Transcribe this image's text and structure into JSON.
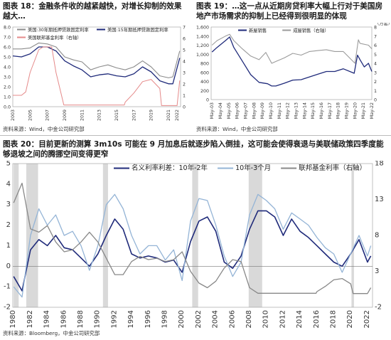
{
  "figure18": {
    "title": "图表 18：金融条件收的越紧越快，对增长抑制的效果越大…",
    "source": "资料来源：Wind，中金公司研究部",
    "chart_data": {
      "type": "line",
      "x_ticks": [
        "2003",
        "2005",
        "2007",
        "2009",
        "2011",
        "2013",
        "2015",
        "2017",
        "2019",
        "2021",
        "2022"
      ],
      "y_left_ticks": [
        "0.0",
        "1.0",
        "2.0",
        "3.0",
        "4.0",
        "5.0",
        "6.0",
        "7.0",
        "8.0"
      ],
      "y_right_ticks": [
        "0",
        "1",
        "2",
        "3",
        "4",
        "5",
        "6",
        "7"
      ],
      "ylim": [
        0,
        8
      ],
      "y2lim": [
        0,
        7
      ],
      "series": [
        {
          "name": "美国:30年期抵押贷款固定利率",
          "axis": "left",
          "color": "#8c8c8c",
          "x": [
            2003,
            2004,
            2005,
            2006,
            2007,
            2008,
            2009,
            2010,
            2011,
            2012,
            2013,
            2014,
            2015,
            2016,
            2017,
            2018,
            2019,
            2020,
            2021,
            2021.5,
            2022.3
          ],
          "values": [
            5.8,
            5.8,
            5.9,
            6.4,
            6.3,
            6.0,
            5.0,
            4.7,
            4.5,
            3.7,
            4.0,
            4.2,
            3.9,
            3.7,
            4.0,
            4.6,
            4.0,
            3.1,
            2.9,
            3.0,
            5.6
          ]
        },
        {
          "name": "美国:15年期抵押贷款固定利率",
          "axis": "left",
          "color": "#1f2a7a",
          "x": [
            2003,
            2004,
            2005,
            2006,
            2007,
            2008,
            2009,
            2010,
            2011,
            2012,
            2013,
            2014,
            2015,
            2016,
            2017,
            2018,
            2019,
            2020,
            2021,
            2021.5,
            2022.3
          ],
          "values": [
            5.1,
            5.0,
            5.3,
            6.0,
            6.0,
            5.6,
            4.6,
            4.1,
            3.7,
            3.0,
            3.2,
            3.3,
            3.1,
            3.0,
            3.3,
            4.0,
            3.5,
            2.6,
            2.3,
            2.3,
            4.9
          ]
        },
        {
          "name": "美国联邦基金利率（右轴）",
          "axis": "right",
          "color": "#e58a8a",
          "x": [
            2003,
            2004,
            2004.5,
            2005,
            2006,
            2006.5,
            2007.5,
            2008,
            2008.9,
            2009,
            2015.9,
            2016,
            2017,
            2018,
            2019,
            2019.5,
            2020,
            2020.2,
            2022,
            2022.3
          ],
          "values": [
            1.0,
            1.0,
            1.3,
            3.0,
            5.0,
            5.25,
            5.25,
            3.0,
            0.15,
            0.15,
            0.15,
            0.4,
            1.2,
            2.2,
            2.4,
            2.0,
            1.6,
            0.1,
            0.1,
            2.3
          ]
        }
      ]
    }
  },
  "figure19": {
    "title": "图表 19：…这一点从近期房贷利率大幅上行对于美国房地产市场需求的抑制上已经得到很明显的体现",
    "source": "资料来源：Wind，中金公司研究部",
    "chart_data": {
      "type": "line",
      "x_ticks": [
        "May-03",
        "May-04",
        "May-05",
        "May-06",
        "May-07",
        "May-08",
        "May-09",
        "May-10",
        "May-11",
        "May-12",
        "May-13",
        "May-14",
        "May-15",
        "May-16",
        "May-17",
        "May-18",
        "May-19",
        "May-20",
        "May-21",
        "May-22"
      ],
      "y_left_ticks": [
        "0",
        "200",
        "400",
        "600",
        "800",
        "1,000",
        "1,200",
        "1,400",
        "1,600"
      ],
      "y_right_ticks": [
        "0",
        "1",
        "2",
        "3",
        "4",
        "5",
        "6",
        "7",
        "8"
      ],
      "y_right_unit": "（万套）",
      "ylim": [
        0,
        1600
      ],
      "y2lim": [
        0,
        800
      ],
      "series": [
        {
          "name": "新屋销售",
          "axis": "left",
          "color": "#1f2a7a",
          "x": [
            2003.4,
            2004,
            2005,
            2005.5,
            2006,
            2007,
            2008,
            2009,
            2010,
            2010.5,
            2011,
            2012,
            2013,
            2014,
            2015,
            2016,
            2017,
            2018,
            2019,
            2020.3,
            2020.7,
            2021,
            2021.5,
            2022,
            2022.4
          ],
          "values": [
            1050,
            1150,
            1300,
            1380,
            1150,
            850,
            550,
            380,
            350,
            300,
            300,
            360,
            430,
            440,
            500,
            560,
            620,
            620,
            680,
            580,
            980,
            880,
            720,
            800,
            620
          ]
        },
        {
          "name": "成屋销售（右轴）",
          "axis": "right",
          "color": "#9b9b9b",
          "x": [
            2003.4,
            2004,
            2005,
            2005.5,
            2006,
            2007,
            2008,
            2009,
            2009.8,
            2010.5,
            2011,
            2012,
            2013,
            2014,
            2015,
            2016,
            2017,
            2018,
            2019,
            2020.4,
            2020.8,
            2021,
            2022,
            2022.4
          ],
          "values": [
            600,
            650,
            700,
            720,
            650,
            560,
            480,
            440,
            520,
            400,
            420,
            460,
            510,
            490,
            530,
            540,
            550,
            530,
            530,
            400,
            660,
            620,
            600,
            560
          ]
        }
      ]
    }
  },
  "figure20": {
    "title": "图表 20：目前更新的测算 3m10s 可能在 9 月加息后就逐步陷入倒挂，这可能会使得衰退与美联储政策四季度能够退坡之间的腾挪空间变得更窄",
    "source": "资料来源：Bloomberg，中金公司研究部",
    "chart_data": {
      "type": "line",
      "x_ticks": [
        "1980",
        "1982",
        "1984",
        "1986",
        "1988",
        "1990",
        "1992",
        "1994",
        "1996",
        "1998",
        "2000",
        "2002",
        "2004",
        "2006",
        "2008",
        "2010",
        "2012",
        "2014",
        "2016",
        "2018",
        "2020",
        "2022"
      ],
      "y_left_ticks": [
        "-2",
        "-1",
        "0",
        "1",
        "2",
        "3",
        "4",
        "5"
      ],
      "y_right_ticks": [
        "-2",
        "3",
        "8",
        "13",
        "18"
      ],
      "ylim": [
        -2,
        5
      ],
      "y2lim": [
        -2,
        20
      ],
      "recessions": [
        [
          1980.0,
          1980.6
        ],
        [
          1981.5,
          1982.9
        ],
        [
          1990.6,
          1991.2
        ],
        [
          2001.2,
          2001.9
        ],
        [
          2007.9,
          2009.5
        ],
        [
          2020.1,
          2020.4
        ]
      ],
      "series": [
        {
          "name": "名义利率利差：10年-2年",
          "axis": "left",
          "color": "#1f2a7a",
          "x": [
            1980,
            1981,
            1982,
            1983,
            1984,
            1985,
            1986,
            1987,
            1988,
            1989,
            1990,
            1991,
            1992,
            1993,
            1994,
            1995,
            1996,
            1997,
            1998,
            1999,
            2000,
            2001,
            2002,
            2003,
            2004,
            2005,
            2006,
            2007,
            2008,
            2009,
            2010,
            2011,
            2012,
            2013,
            2014,
            2015,
            2016,
            2017,
            2018,
            2019,
            2020,
            2021,
            2022,
            2022.4
          ],
          "values": [
            -0.5,
            -1.2,
            0.8,
            1.3,
            1.0,
            1.5,
            0.9,
            0.8,
            0.4,
            0.0,
            0.6,
            1.5,
            2.3,
            1.8,
            0.6,
            0.4,
            0.5,
            0.4,
            0.2,
            0.3,
            -0.3,
            1.2,
            2.2,
            2.4,
            1.7,
            0.2,
            -0.1,
            0.5,
            1.8,
            2.7,
            2.7,
            2.4,
            1.5,
            2.3,
            1.7,
            1.4,
            1.0,
            0.6,
            0.2,
            0.0,
            0.6,
            1.3,
            0.2,
            0.5
          ]
        },
        {
          "name": "10年-3个月",
          "axis": "left",
          "color": "#94b4d6",
          "x": [
            1980,
            1981,
            1982,
            1983,
            1984,
            1985,
            1986,
            1987,
            1988,
            1989,
            1990,
            1991,
            1992,
            1993,
            1994,
            1995,
            1996,
            1997,
            1998,
            1999,
            2000,
            2001,
            2002,
            2003,
            2004,
            2005,
            2006,
            2007,
            2008,
            2009,
            2010,
            2011,
            2012,
            2013,
            2014,
            2015,
            2016,
            2017,
            2018,
            2019,
            2020,
            2021,
            2022,
            2022.4
          ],
          "values": [
            -1.0,
            -1.5,
            1.5,
            2.8,
            2.0,
            2.5,
            1.5,
            1.7,
            1.0,
            -0.2,
            1.0,
            3.0,
            3.5,
            2.8,
            1.5,
            0.6,
            1.0,
            1.0,
            0.3,
            0.8,
            -0.7,
            2.2,
            3.3,
            3.2,
            2.0,
            0.5,
            -0.5,
            0.2,
            2.5,
            3.5,
            3.2,
            2.8,
            1.8,
            2.6,
            2.3,
            2.0,
            1.4,
            0.9,
            0.6,
            -0.3,
            0.6,
            1.5,
            0.5,
            1.0
          ]
        },
        {
          "name": "联邦基金利率（右轴）",
          "axis": "right",
          "color": "#888888",
          "x": [
            1980,
            1981,
            1982,
            1983,
            1984,
            1985,
            1986,
            1987,
            1988,
            1989,
            1990,
            1991,
            1992,
            1993,
            1994,
            1995,
            1996,
            1997,
            1998,
            1999,
            2000,
            2001,
            2002,
            2003,
            2004,
            2005,
            2006,
            2007,
            2008,
            2009,
            2015.9,
            2016,
            2017,
            2018,
            2019,
            2020,
            2020.3,
            2022,
            2022.4
          ],
          "values": [
            14.0,
            17.0,
            10.0,
            9.5,
            10.5,
            8.0,
            6.5,
            6.8,
            8.0,
            9.5,
            8.0,
            5.5,
            3.0,
            3.0,
            5.0,
            5.8,
            5.3,
            5.5,
            5.0,
            5.3,
            6.5,
            3.5,
            1.7,
            1.0,
            2.0,
            4.0,
            5.3,
            5.0,
            1.0,
            0.15,
            0.15,
            0.4,
            1.2,
            2.2,
            2.4,
            1.6,
            0.1,
            0.1,
            1.0
          ]
        }
      ]
    }
  }
}
